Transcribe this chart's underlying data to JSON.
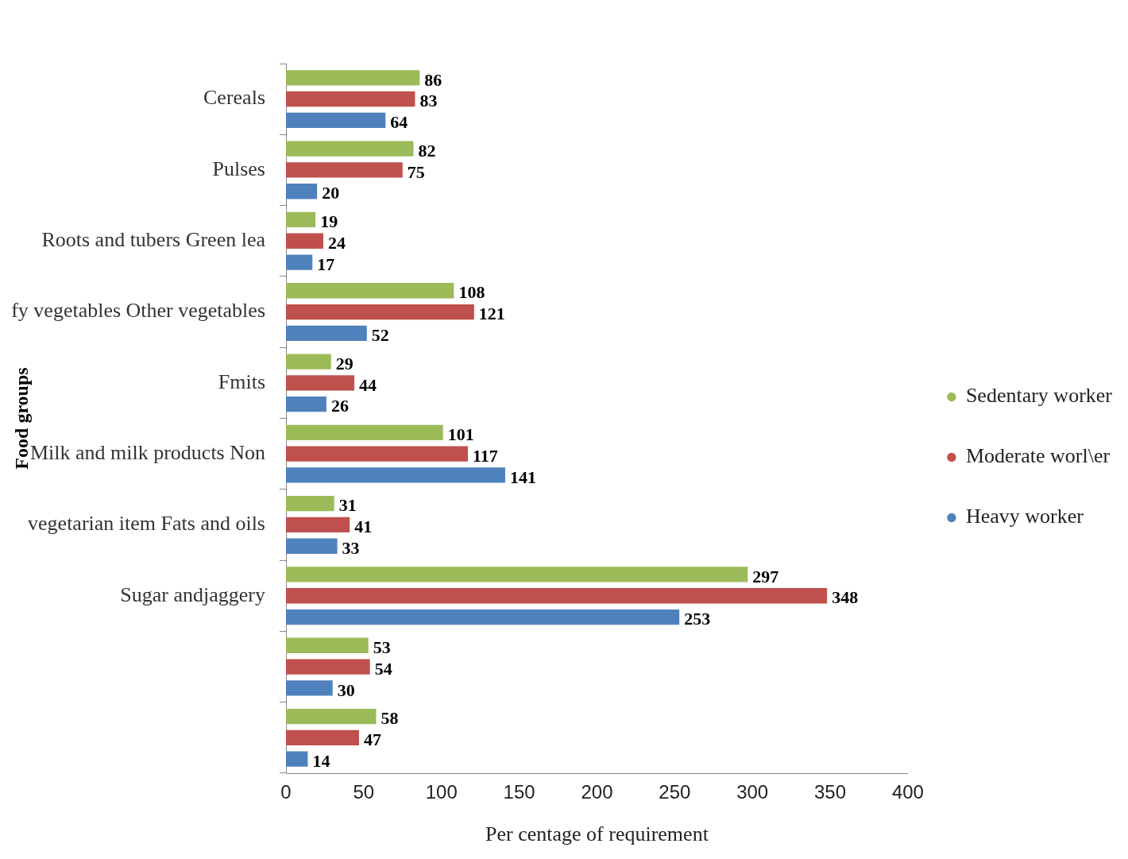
{
  "chart_data": {
    "type": "bar",
    "orientation": "horizontal",
    "xlabel": "Per centage of requirement",
    "ylabel": "Food groups",
    "categories": [
      "Cereals",
      "Pulses",
      "Roots and tubers Green lea",
      "fy vegetables Other vegetables",
      "Fmits",
      "Milk and milk products Non",
      "vegetarian item Fats and oils",
      "Sugar andjaggery",
      null,
      null
    ],
    "series": [
      {
        "name": "Sedentary worker",
        "color": "#9bbb59",
        "values": [
          86,
          82,
          19,
          108,
          29,
          101,
          31,
          297,
          53,
          58
        ]
      },
      {
        "name": "Moderate worl\\er",
        "color": "#c0504d",
        "values": [
          83,
          75,
          24,
          121,
          44,
          117,
          41,
          348,
          54,
          47
        ]
      },
      {
        "name": "Heavy worker",
        "color": "#4f81bd",
        "values": [
          64,
          20,
          17,
          52,
          26,
          141,
          33,
          253,
          30,
          14
        ]
      }
    ],
    "xlim": [
      0,
      400
    ],
    "xticks": [
      0,
      50,
      100,
      150,
      200,
      250,
      300,
      350,
      400
    ],
    "grid": false,
    "legend": "right",
    "data_labels": true
  }
}
